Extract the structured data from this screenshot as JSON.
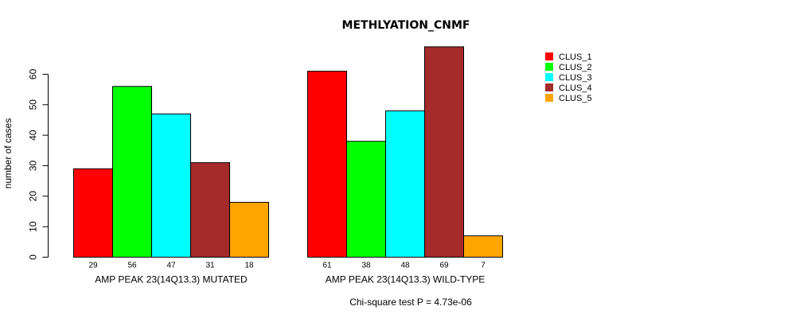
{
  "chart_data": {
    "type": "bar",
    "title": "METHLYATION_CNMF",
    "ylabel": "number of cases",
    "xlabel": "",
    "ylim": [
      0,
      60
    ],
    "yticks": [
      0,
      10,
      20,
      30,
      40,
      50,
      60
    ],
    "groups": [
      {
        "name": "AMP PEAK 23(14Q13.3) MUTATED",
        "values": [
          29,
          56,
          47,
          31,
          18
        ],
        "value_labels": [
          "29",
          "56",
          "47",
          "31",
          "18"
        ]
      },
      {
        "name": "AMP PEAK 23(14Q13.3) WILD-TYPE",
        "values": [
          61,
          38,
          48,
          69,
          7
        ],
        "value_labels": [
          "61",
          "38",
          "48",
          "69",
          "7"
        ]
      }
    ],
    "series": [
      {
        "name": "CLUS_1",
        "color": "#ff0000"
      },
      {
        "name": "CLUS_2",
        "color": "#00ff00"
      },
      {
        "name": "CLUS_3",
        "color": "#00ffff"
      },
      {
        "name": "CLUS_4",
        "color": "#a52a2a"
      },
      {
        "name": "CLUS_5",
        "color": "#ffa500"
      }
    ],
    "legend_position": "top-right",
    "footnote": "Chi-square test P = 4.73e-06"
  }
}
